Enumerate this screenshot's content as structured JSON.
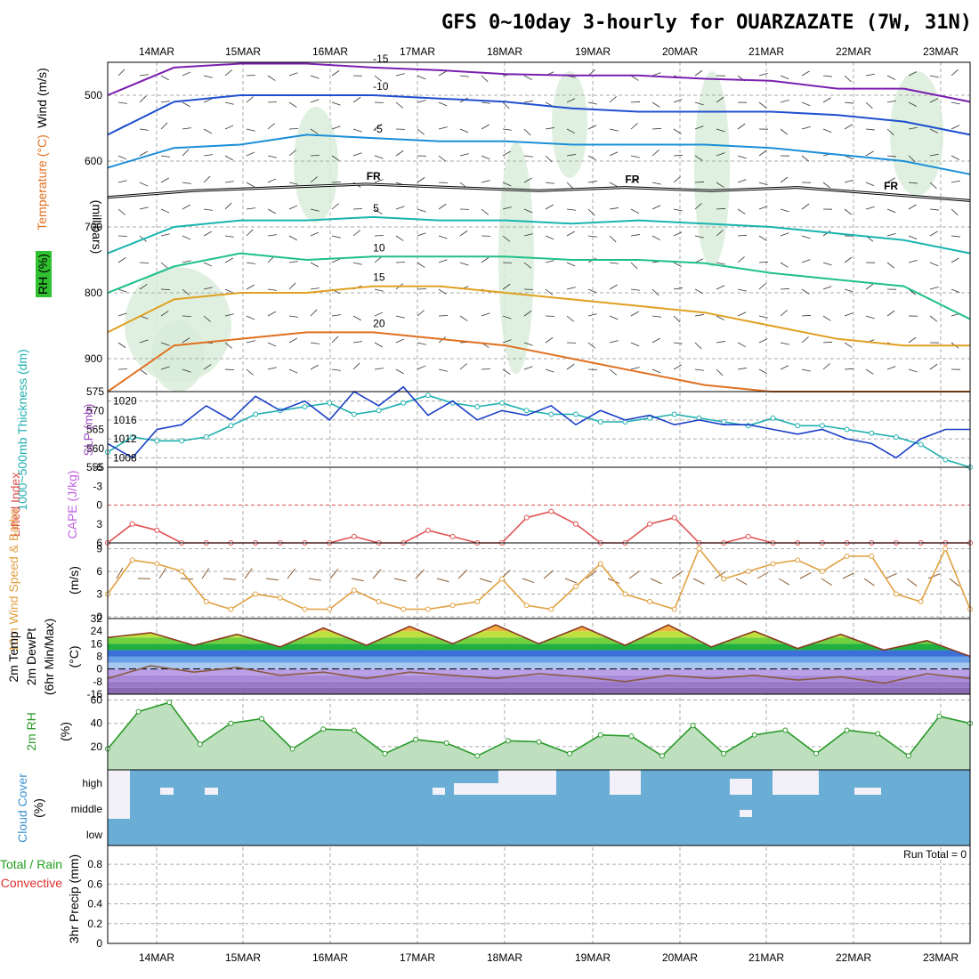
{
  "chart_data": {
    "type": "meteogram",
    "title": "GFS 0~10day 3-hourly for OUARZAZATE (7W, 31N)",
    "dates": [
      "14MAR",
      "15MAR",
      "16MAR",
      "17MAR",
      "18MAR",
      "19MAR",
      "20MAR",
      "21MAR",
      "22MAR",
      "23MAR"
    ],
    "panels": {
      "upper": {
        "ylabel": "(millibars)",
        "legend": [
          "Wind (m/s)",
          "Temperature (°C)",
          "RH (%)"
        ],
        "yticks": [
          500,
          600,
          700,
          800,
          900
        ],
        "ylim": [
          450,
          950
        ],
        "freezing_label": "FR",
        "freezing_level_mb": [
          655,
          645,
          640,
          635,
          640,
          645,
          640,
          645,
          640,
          650,
          660
        ],
        "isotherms": [
          {
            "label": "-15",
            "color": "#7a1fb0",
            "values_mb": [
              500,
              458,
              452,
              452,
              458,
              462,
              468,
              470,
              470,
              475,
              478,
              490,
              490,
              510
            ]
          },
          {
            "label": "-10",
            "color": "#1f4fd0",
            "values_mb": [
              560,
              510,
              500,
              500,
              500,
              505,
              510,
              520,
              525,
              525,
              525,
              530,
              540,
              560
            ]
          },
          {
            "label": "-5",
            "color": "#1a8fd8",
            "values_mb": [
              610,
              580,
              575,
              560,
              565,
              570,
              570,
              575,
              575,
              575,
              580,
              590,
              600,
              620
            ]
          },
          {
            "label": "5",
            "color": "#18b4b0",
            "values_mb": [
              740,
              700,
              690,
              690,
              685,
              690,
              690,
              695,
              690,
              695,
              700,
              710,
              720,
              740
            ]
          },
          {
            "label": "10",
            "color": "#1ec08a",
            "values_mb": [
              800,
              760,
              740,
              750,
              745,
              745,
              745,
              750,
              750,
              755,
              770,
              780,
              790,
              840
            ]
          },
          {
            "label": "15",
            "color": "#e0a020",
            "values_mb": [
              860,
              810,
              800,
              800,
              790,
              790,
              800,
              810,
              820,
              830,
              850,
              870,
              880,
              880
            ]
          },
          {
            "label": "20",
            "color": "#e07020",
            "values_mb": [
              950,
              880,
              870,
              860,
              860,
              870,
              880,
              900,
              920,
              940,
              950,
              950,
              950,
              950
            ]
          }
        ]
      },
      "thickness": {
        "ylabel_left": "1000~500mb Thickness (dm)",
        "ylabel_right": "SLP (mb)",
        "yticks_left": [
          555,
          560,
          565,
          570,
          575
        ],
        "yticks_right": [
          1008,
          1012,
          1016,
          1020
        ],
        "thickness_dm": [
          559,
          563,
          562,
          562,
          563,
          566,
          569,
          570,
          571,
          572,
          569,
          570,
          572,
          574,
          572,
          571,
          572,
          570,
          569,
          569,
          567,
          567,
          568,
          569,
          568,
          567,
          566,
          568,
          566,
          566,
          565,
          564,
          563,
          561,
          557,
          555
        ],
        "slp_mb": [
          1011,
          1008,
          1014,
          1015,
          1019,
          1016,
          1021,
          1018,
          1020,
          1016,
          1022,
          1019,
          1023,
          1017,
          1020,
          1016,
          1018,
          1017,
          1019,
          1015,
          1018,
          1016,
          1017,
          1015,
          1016,
          1015,
          1015,
          1014,
          1013,
          1014,
          1012,
          1011,
          1008,
          1012,
          1014,
          1014
        ]
      },
      "lifted_index": {
        "ylabel": "Lifted Index",
        "ylabel2": "CAPE (J/kg)",
        "yticks": [
          "6",
          "3",
          "0",
          "-3",
          "-6"
        ],
        "values": [
          6,
          3,
          4,
          6,
          6,
          6,
          6,
          6,
          6,
          6,
          5,
          6,
          6,
          4,
          5,
          6,
          6,
          2,
          1,
          3,
          6,
          6,
          3,
          2,
          6,
          6,
          5,
          6,
          6,
          6,
          6,
          6,
          6,
          6,
          6,
          6
        ]
      },
      "wind10m": {
        "ylabel": "10m Wind Speed & Barbs",
        "unit": "(m/s)",
        "yticks": [
          0,
          3,
          6,
          9
        ],
        "values": [
          3,
          7.5,
          7,
          6,
          2,
          1,
          3,
          2.5,
          1,
          1,
          3.5,
          2,
          1,
          1,
          1.5,
          2,
          5,
          1.5,
          1,
          4,
          7,
          3,
          2,
          1,
          9,
          5,
          6,
          7,
          7.5,
          6,
          8,
          8,
          3,
          2,
          9,
          1
        ]
      },
      "temp2m": {
        "ylabel": "2m Temp 2m DewPt (6hr Min/Max)",
        "unit": "(°C)",
        "yticks": [
          32,
          24,
          16,
          8,
          0,
          -8,
          -16
        ],
        "temp": [
          20,
          23,
          15,
          22,
          14,
          26,
          15,
          27,
          16,
          28,
          16,
          27,
          15,
          28,
          14,
          24,
          13,
          22,
          12,
          18,
          8
        ],
        "dewpoint": [
          -6,
          2,
          -2,
          1,
          -4,
          -2,
          -6,
          -2,
          -4,
          -6,
          -3,
          -5,
          -8,
          -4,
          -6,
          -4,
          -7,
          -5,
          -9,
          -3,
          -6
        ]
      },
      "rh2m": {
        "ylabel": "2m RH",
        "unit": "(%)",
        "yticks": [
          20,
          40,
          60
        ],
        "values": [
          18,
          50,
          58,
          22,
          40,
          44,
          18,
          35,
          34,
          14,
          26,
          23,
          12,
          25,
          24,
          14,
          30,
          29,
          12,
          38,
          14,
          30,
          34,
          14,
          34,
          31,
          12,
          46,
          40
        ]
      },
      "cloud": {
        "ylabel": "Cloud Cover",
        "unit": "(%)",
        "levels": [
          "high",
          "middle",
          "low"
        ]
      },
      "precip": {
        "ylabel": "3hr Precip (mm)",
        "legend": [
          "Total / Rain",
          "Convective"
        ],
        "yticks": [
          "0",
          "0.2",
          "0.4",
          "0.6",
          "0.8"
        ],
        "run_total_label": "Run Total = 0"
      }
    }
  },
  "colors": {
    "thickness": "#20b0b0",
    "slp": "#1a3fc8",
    "lifted": "#e05050",
    "wind": "#e0a040",
    "barb": "#8a5a30",
    "temp_curve": "#8a3a20",
    "dewpoint": "#8a5a40",
    "rh": "#2a9a2a",
    "cloud": "#6aaed6"
  }
}
